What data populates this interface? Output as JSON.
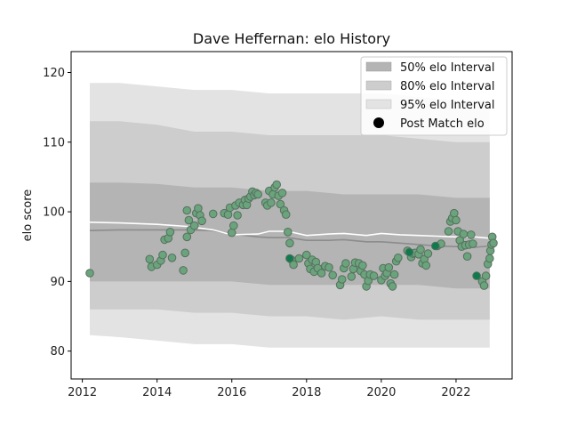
{
  "chart_data": {
    "type": "scatter",
    "title": "Dave Heffernan: elo History",
    "xlabel": "",
    "ylabel": "elo score",
    "xlim": [
      2011.7,
      2023.5
    ],
    "ylim": [
      76,
      123
    ],
    "x_ticks": [
      2012,
      2014,
      2016,
      2018,
      2020,
      2022
    ],
    "y_ticks": [
      80,
      90,
      100,
      110,
      120
    ],
    "x_tick_labels": [
      "2012",
      "2014",
      "2016",
      "2018",
      "2020",
      "2022"
    ],
    "y_tick_labels": [
      "80",
      "90",
      "100",
      "110",
      "120"
    ],
    "legend": {
      "placement": "top-right",
      "entries": [
        "50% elo Interval",
        "80% elo Interval",
        "95% elo Interval",
        "Post Match elo"
      ]
    },
    "colors": {
      "band50": "#b4b4b4",
      "band80": "#cdcdcd",
      "band95": "#e3e3e3",
      "median_line": "#8c8c8c",
      "mean_line": "#ffffff",
      "point_fill": "#6aa37c",
      "point_edge": "#56705e",
      "point_highlight": "#0e7a4e"
    },
    "bands": {
      "x": [
        2012.2,
        2013,
        2014,
        2015,
        2016,
        2017,
        2018,
        2019,
        2020,
        2021,
        2022,
        2022.9
      ],
      "p95_upper": [
        118.5,
        118.5,
        118,
        117.5,
        117.5,
        117,
        117,
        117,
        117,
        116.5,
        116,
        116
      ],
      "p95_lower": [
        82.3,
        82,
        81.5,
        81,
        81,
        80.5,
        80.5,
        80.5,
        80.5,
        80.5,
        80.5,
        80.5
      ],
      "p80_upper": [
        113,
        113,
        112.5,
        111.5,
        111.5,
        111,
        111,
        111,
        111,
        110.5,
        110,
        110
      ],
      "p80_lower": [
        86,
        86,
        86,
        85.5,
        85.5,
        85,
        85,
        84.5,
        85,
        84.5,
        84.5,
        84.5
      ],
      "p50_upper": [
        104.2,
        104.2,
        104,
        103.5,
        103.5,
        103,
        103,
        102.5,
        102.5,
        102.5,
        102,
        102
      ],
      "p50_lower": [
        90,
        90,
        90,
        90,
        90,
        89.5,
        89.5,
        89.5,
        89.5,
        89.5,
        89,
        89
      ]
    },
    "median_line": {
      "x": [
        2012.2,
        2013,
        2014,
        2014.8,
        2015.5,
        2016,
        2016.7,
        2017,
        2017.5,
        2018,
        2018.6,
        2019,
        2019.6,
        2020,
        2020.5,
        2021,
        2021.5,
        2022,
        2022.5,
        2022.9
      ],
      "y": [
        97.3,
        97.4,
        97.4,
        97.4,
        97.3,
        96.8,
        96.4,
        96.3,
        96.3,
        95.9,
        95.9,
        96,
        95.7,
        95.7,
        95.5,
        95.3,
        95.1,
        95,
        94.9,
        95.1
      ]
    },
    "mean_line": {
      "x": [
        2012.2,
        2013,
        2014,
        2014.8,
        2015.5,
        2016,
        2016.7,
        2017,
        2017.5,
        2018,
        2018.6,
        2019,
        2019.6,
        2020,
        2020.5,
        2021,
        2021.5,
        2022,
        2022.5,
        2022.9
      ],
      "y": [
        98.5,
        98.4,
        98.2,
        97.9,
        97.4,
        96.7,
        96.8,
        97.2,
        97.2,
        96.6,
        96.8,
        96.9,
        96.6,
        96.9,
        96.7,
        96.6,
        96.5,
        96.4,
        96.4,
        96.2
      ]
    },
    "points": [
      {
        "x": 2012.2,
        "y": 91.2
      },
      {
        "x": 2013.8,
        "y": 93.2
      },
      {
        "x": 2013.85,
        "y": 92.1
      },
      {
        "x": 2014.0,
        "y": 92.4
      },
      {
        "x": 2014.1,
        "y": 93.0
      },
      {
        "x": 2014.15,
        "y": 93.8
      },
      {
        "x": 2014.2,
        "y": 96.0
      },
      {
        "x": 2014.3,
        "y": 96.2
      },
      {
        "x": 2014.35,
        "y": 97.1
      },
      {
        "x": 2014.4,
        "y": 93.4
      },
      {
        "x": 2014.7,
        "y": 91.6
      },
      {
        "x": 2014.75,
        "y": 94.1
      },
      {
        "x": 2014.8,
        "y": 96.4
      },
      {
        "x": 2014.8,
        "y": 100.2
      },
      {
        "x": 2014.85,
        "y": 98.8
      },
      {
        "x": 2014.9,
        "y": 97.4
      },
      {
        "x": 2015.0,
        "y": 98.0
      },
      {
        "x": 2015.05,
        "y": 99.8
      },
      {
        "x": 2015.1,
        "y": 100.5
      },
      {
        "x": 2015.15,
        "y": 99.5
      },
      {
        "x": 2015.2,
        "y": 98.7
      },
      {
        "x": 2015.5,
        "y": 99.7
      },
      {
        "x": 2015.8,
        "y": 99.8
      },
      {
        "x": 2015.9,
        "y": 99.6
      },
      {
        "x": 2015.95,
        "y": 100.6
      },
      {
        "x": 2016.0,
        "y": 97.0
      },
      {
        "x": 2016.05,
        "y": 98.0
      },
      {
        "x": 2016.1,
        "y": 100.9
      },
      {
        "x": 2016.15,
        "y": 99.5
      },
      {
        "x": 2016.2,
        "y": 101.3
      },
      {
        "x": 2016.3,
        "y": 101.0
      },
      {
        "x": 2016.35,
        "y": 101.7
      },
      {
        "x": 2016.4,
        "y": 101.0
      },
      {
        "x": 2016.45,
        "y": 101.9
      },
      {
        "x": 2016.5,
        "y": 102.2
      },
      {
        "x": 2016.55,
        "y": 102.9
      },
      {
        "x": 2016.6,
        "y": 102.4
      },
      {
        "x": 2016.65,
        "y": 102.7
      },
      {
        "x": 2016.7,
        "y": 102.5
      },
      {
        "x": 2016.9,
        "y": 101.3
      },
      {
        "x": 2016.95,
        "y": 100.9
      },
      {
        "x": 2017.0,
        "y": 103.0
      },
      {
        "x": 2017.05,
        "y": 101.3
      },
      {
        "x": 2017.1,
        "y": 102.5
      },
      {
        "x": 2017.15,
        "y": 103.5
      },
      {
        "x": 2017.2,
        "y": 103.9
      },
      {
        "x": 2017.25,
        "y": 102.3
      },
      {
        "x": 2017.3,
        "y": 101.1
      },
      {
        "x": 2017.35,
        "y": 102.7
      },
      {
        "x": 2017.4,
        "y": 100.2
      },
      {
        "x": 2017.45,
        "y": 99.6
      },
      {
        "x": 2017.5,
        "y": 97.1
      },
      {
        "x": 2017.55,
        "y": 95.5
      },
      {
        "x": 2017.6,
        "y": 93.1
      },
      {
        "x": 2017.65,
        "y": 92.4
      },
      {
        "x": 2017.8,
        "y": 93.3
      },
      {
        "x": 2018.0,
        "y": 93.8
      },
      {
        "x": 2018.05,
        "y": 92.6
      },
      {
        "x": 2018.1,
        "y": 91.8
      },
      {
        "x": 2018.15,
        "y": 93.1
      },
      {
        "x": 2018.2,
        "y": 91.4
      },
      {
        "x": 2018.25,
        "y": 92.8
      },
      {
        "x": 2018.3,
        "y": 91.9
      },
      {
        "x": 2018.4,
        "y": 91.2
      },
      {
        "x": 2018.5,
        "y": 92.2
      },
      {
        "x": 2018.6,
        "y": 92.0
      },
      {
        "x": 2018.7,
        "y": 90.9
      },
      {
        "x": 2018.9,
        "y": 89.5
      },
      {
        "x": 2018.95,
        "y": 90.3
      },
      {
        "x": 2019.0,
        "y": 91.9
      },
      {
        "x": 2019.05,
        "y": 92.6
      },
      {
        "x": 2019.2,
        "y": 90.7
      },
      {
        "x": 2019.25,
        "y": 91.8
      },
      {
        "x": 2019.3,
        "y": 92.7
      },
      {
        "x": 2019.4,
        "y": 92.6
      },
      {
        "x": 2019.45,
        "y": 91.5
      },
      {
        "x": 2019.5,
        "y": 92.3
      },
      {
        "x": 2019.55,
        "y": 91.0
      },
      {
        "x": 2019.6,
        "y": 89.3
      },
      {
        "x": 2019.65,
        "y": 90.1
      },
      {
        "x": 2019.7,
        "y": 91.0
      },
      {
        "x": 2019.8,
        "y": 90.8
      },
      {
        "x": 2020.0,
        "y": 90.2
      },
      {
        "x": 2020.05,
        "y": 91.9
      },
      {
        "x": 2020.1,
        "y": 90.8
      },
      {
        "x": 2020.15,
        "y": 91.2
      },
      {
        "x": 2020.2,
        "y": 92.0
      },
      {
        "x": 2020.25,
        "y": 89.7
      },
      {
        "x": 2020.3,
        "y": 89.3
      },
      {
        "x": 2020.35,
        "y": 91.0
      },
      {
        "x": 2020.4,
        "y": 92.9
      },
      {
        "x": 2020.45,
        "y": 93.4
      },
      {
        "x": 2020.7,
        "y": 94.4
      },
      {
        "x": 2020.8,
        "y": 93.5
      },
      {
        "x": 2020.85,
        "y": 94.0
      },
      {
        "x": 2020.9,
        "y": 94.1
      },
      {
        "x": 2021.0,
        "y": 93.9
      },
      {
        "x": 2021.05,
        "y": 94.6
      },
      {
        "x": 2021.1,
        "y": 92.6
      },
      {
        "x": 2021.15,
        "y": 93.2
      },
      {
        "x": 2021.2,
        "y": 92.3
      },
      {
        "x": 2021.25,
        "y": 94.0
      },
      {
        "x": 2021.5,
        "y": 95.1
      },
      {
        "x": 2021.6,
        "y": 95.4
      },
      {
        "x": 2021.8,
        "y": 97.2
      },
      {
        "x": 2021.85,
        "y": 98.6
      },
      {
        "x": 2021.9,
        "y": 99.1
      },
      {
        "x": 2021.95,
        "y": 99.8
      },
      {
        "x": 2022.0,
        "y": 98.8
      },
      {
        "x": 2022.05,
        "y": 97.2
      },
      {
        "x": 2022.1,
        "y": 95.9
      },
      {
        "x": 2022.15,
        "y": 95.0
      },
      {
        "x": 2022.2,
        "y": 96.8
      },
      {
        "x": 2022.25,
        "y": 95.2
      },
      {
        "x": 2022.3,
        "y": 93.6
      },
      {
        "x": 2022.35,
        "y": 95.3
      },
      {
        "x": 2022.4,
        "y": 96.7
      },
      {
        "x": 2022.45,
        "y": 95.4
      },
      {
        "x": 2022.7,
        "y": 90.0
      },
      {
        "x": 2022.75,
        "y": 89.4
      },
      {
        "x": 2022.8,
        "y": 90.8
      },
      {
        "x": 2022.85,
        "y": 92.5
      },
      {
        "x": 2022.9,
        "y": 93.3
      },
      {
        "x": 2022.92,
        "y": 94.4
      },
      {
        "x": 2022.95,
        "y": 95.3
      },
      {
        "x": 2022.97,
        "y": 96.4
      },
      {
        "x": 2023.0,
        "y": 95.5
      }
    ],
    "highlight_points": [
      {
        "x": 2017.55,
        "y": 93.3
      },
      {
        "x": 2020.75,
        "y": 94.2
      },
      {
        "x": 2021.45,
        "y": 95.1
      },
      {
        "x": 2022.55,
        "y": 90.8
      }
    ]
  }
}
